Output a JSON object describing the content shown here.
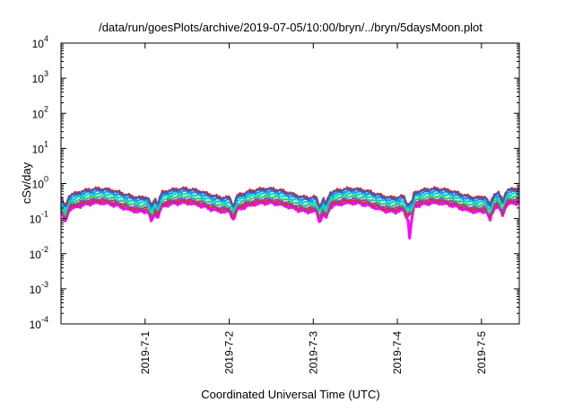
{
  "chart_data": {
    "type": "line",
    "title": "/data/run/goesPlots/archive/2019-07-05/10:00/bryn/../bryn/5daysMoon.plot",
    "xlabel": "Coordinated Universal Time (UTC)",
    "ylabel": "cSv/day",
    "y_scale": "log",
    "ylim": [
      0.0001,
      10000
    ],
    "y_ticks": [
      {
        "value": 0.0001,
        "mantissa": "10",
        "exp": "-4"
      },
      {
        "value": 0.001,
        "mantissa": "10",
        "exp": "-3"
      },
      {
        "value": 0.01,
        "mantissa": "10",
        "exp": "-2"
      },
      {
        "value": 0.1,
        "mantissa": "10",
        "exp": "-1"
      },
      {
        "value": 1,
        "mantissa": "10",
        "exp": "0"
      },
      {
        "value": 10,
        "mantissa": "10",
        "exp": "1"
      },
      {
        "value": 100,
        "mantissa": "10",
        "exp": "2"
      },
      {
        "value": 1000,
        "mantissa": "10",
        "exp": "3"
      },
      {
        "value": 10000,
        "mantissa": "10",
        "exp": "4"
      }
    ],
    "xlim_days": [
      0,
      5.45
    ],
    "x_ticks": [
      {
        "label": "2019-7-1",
        "day": 1
      },
      {
        "label": "2019-7-2",
        "day": 2
      },
      {
        "label": "2019-7-3",
        "day": 3
      },
      {
        "label": "2019-7-4",
        "day": 4
      },
      {
        "label": "2019-7-5",
        "day": 5
      }
    ],
    "grid": false,
    "series": [
      {
        "color": "#ff00ff",
        "level": 0.22
      },
      {
        "color": "#c0392b",
        "level": 0.25
      },
      {
        "color": "#8e44ad",
        "level": 0.28
      },
      {
        "color": "#2ecc71",
        "level": 0.33
      },
      {
        "color": "#00d5d5",
        "level": 0.4
      },
      {
        "color": "#1e90ff",
        "level": 0.47
      },
      {
        "color": "#d62728",
        "level": 0.56
      },
      {
        "color": "#4a5aa8",
        "level": 0.52
      }
    ],
    "dips": [
      {
        "day": 0.05,
        "depth": 0.45
      },
      {
        "day": 1.08,
        "depth": 0.4
      },
      {
        "day": 1.15,
        "depth": 0.5
      },
      {
        "day": 2.05,
        "depth": 0.55
      },
      {
        "day": 3.08,
        "depth": 0.4
      },
      {
        "day": 3.15,
        "depth": 0.45
      },
      {
        "day": 4.15,
        "depth": 0.06
      },
      {
        "day": 4.12,
        "depth": 0.5
      },
      {
        "day": 5.1,
        "depth": 0.45
      },
      {
        "day": 5.25,
        "depth": 0.5
      }
    ]
  }
}
